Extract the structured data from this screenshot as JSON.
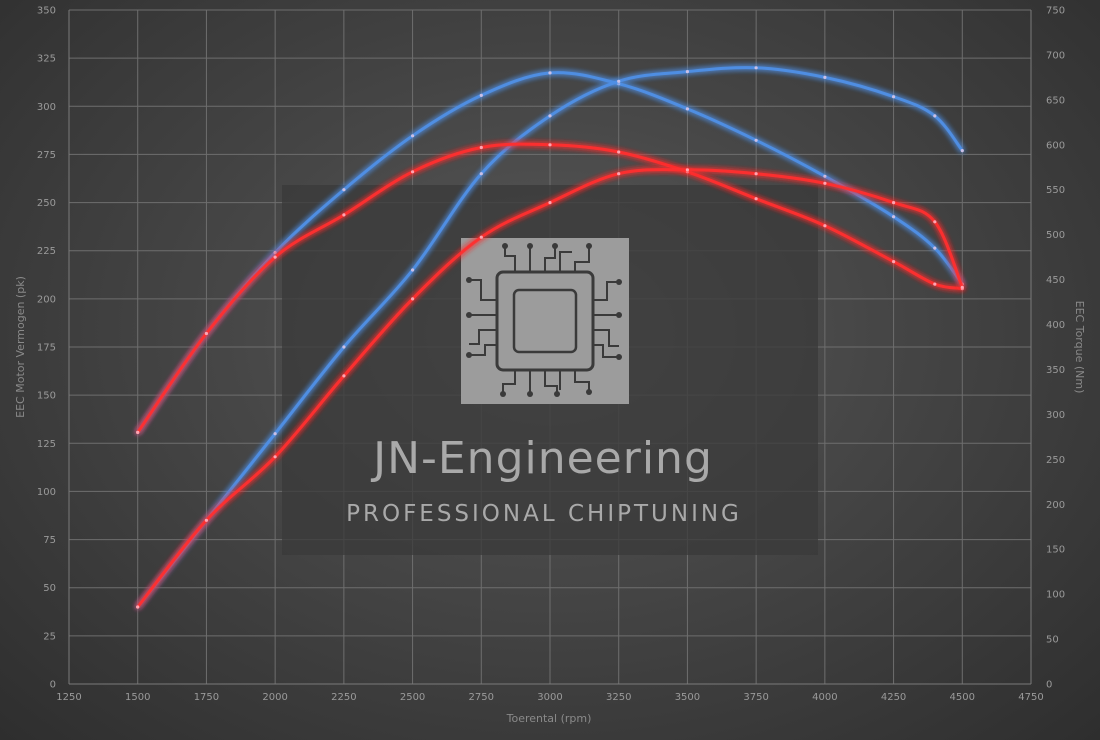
{
  "chart_data": {
    "type": "line",
    "title": "",
    "xlabel": "Toerental (rpm)",
    "ylabel_left": "EEC Motor Vermogen (pk)",
    "ylabel_right": "EEC Torque (Nm)",
    "xlim": [
      1250,
      4750
    ],
    "ylim_left": [
      0,
      350
    ],
    "ylim_right": [
      0,
      750
    ],
    "x_ticks": [
      1250,
      1500,
      1750,
      2000,
      2250,
      2500,
      2750,
      3000,
      3250,
      3500,
      3750,
      4000,
      4250,
      4500,
      4750
    ],
    "y_ticks_left": [
      0,
      25,
      50,
      75,
      100,
      125,
      150,
      175,
      200,
      225,
      250,
      275,
      300,
      325,
      350
    ],
    "y_ticks_right": [
      0,
      50,
      100,
      150,
      200,
      250,
      300,
      350,
      400,
      450,
      500,
      550,
      600,
      650,
      700,
      750
    ],
    "grid": true,
    "colors": {
      "tuned": "#4f8fe6",
      "stock": "#ff3030"
    },
    "series": [
      {
        "color_key": "tuned",
        "axis": "right",
        "measure": "torque",
        "x": [
          1500,
          1750,
          2000,
          2250,
          2500,
          2750,
          3000,
          3250,
          3500,
          3750,
          4000,
          4250,
          4400,
          4500
        ],
        "y": [
          280,
          390,
          480,
          550,
          610,
          655,
          680,
          668,
          640,
          605,
          565,
          520,
          485,
          445
        ]
      },
      {
        "color_key": "tuned",
        "axis": "left",
        "measure": "power",
        "x": [
          1500,
          1750,
          2000,
          2250,
          2500,
          2750,
          3000,
          3250,
          3500,
          3750,
          4000,
          4250,
          4400,
          4500
        ],
        "y": [
          40,
          85,
          130,
          175,
          215,
          265,
          295,
          313,
          318,
          320,
          315,
          305,
          295,
          277
        ]
      },
      {
        "color_key": "stock",
        "axis": "right",
        "measure": "torque",
        "x": [
          1500,
          1750,
          2000,
          2250,
          2500,
          2750,
          3000,
          3250,
          3500,
          3750,
          4000,
          4250,
          4400,
          4500
        ],
        "y": [
          280,
          390,
          475,
          522,
          570,
          597,
          600,
          592,
          570,
          540,
          510,
          470,
          445,
          440
        ]
      },
      {
        "color_key": "stock",
        "axis": "left",
        "measure": "power",
        "x": [
          1500,
          1750,
          2000,
          2250,
          2500,
          2750,
          3000,
          3250,
          3500,
          3750,
          4000,
          4250,
          4400,
          4500
        ],
        "y": [
          40,
          85,
          118,
          160,
          200,
          232,
          250,
          265,
          267,
          265,
          260,
          250,
          240,
          206
        ]
      }
    ]
  },
  "watermark": {
    "title": "JN-Engineering",
    "subtitle": "PROFESSIONAL CHIPTUNING"
  }
}
